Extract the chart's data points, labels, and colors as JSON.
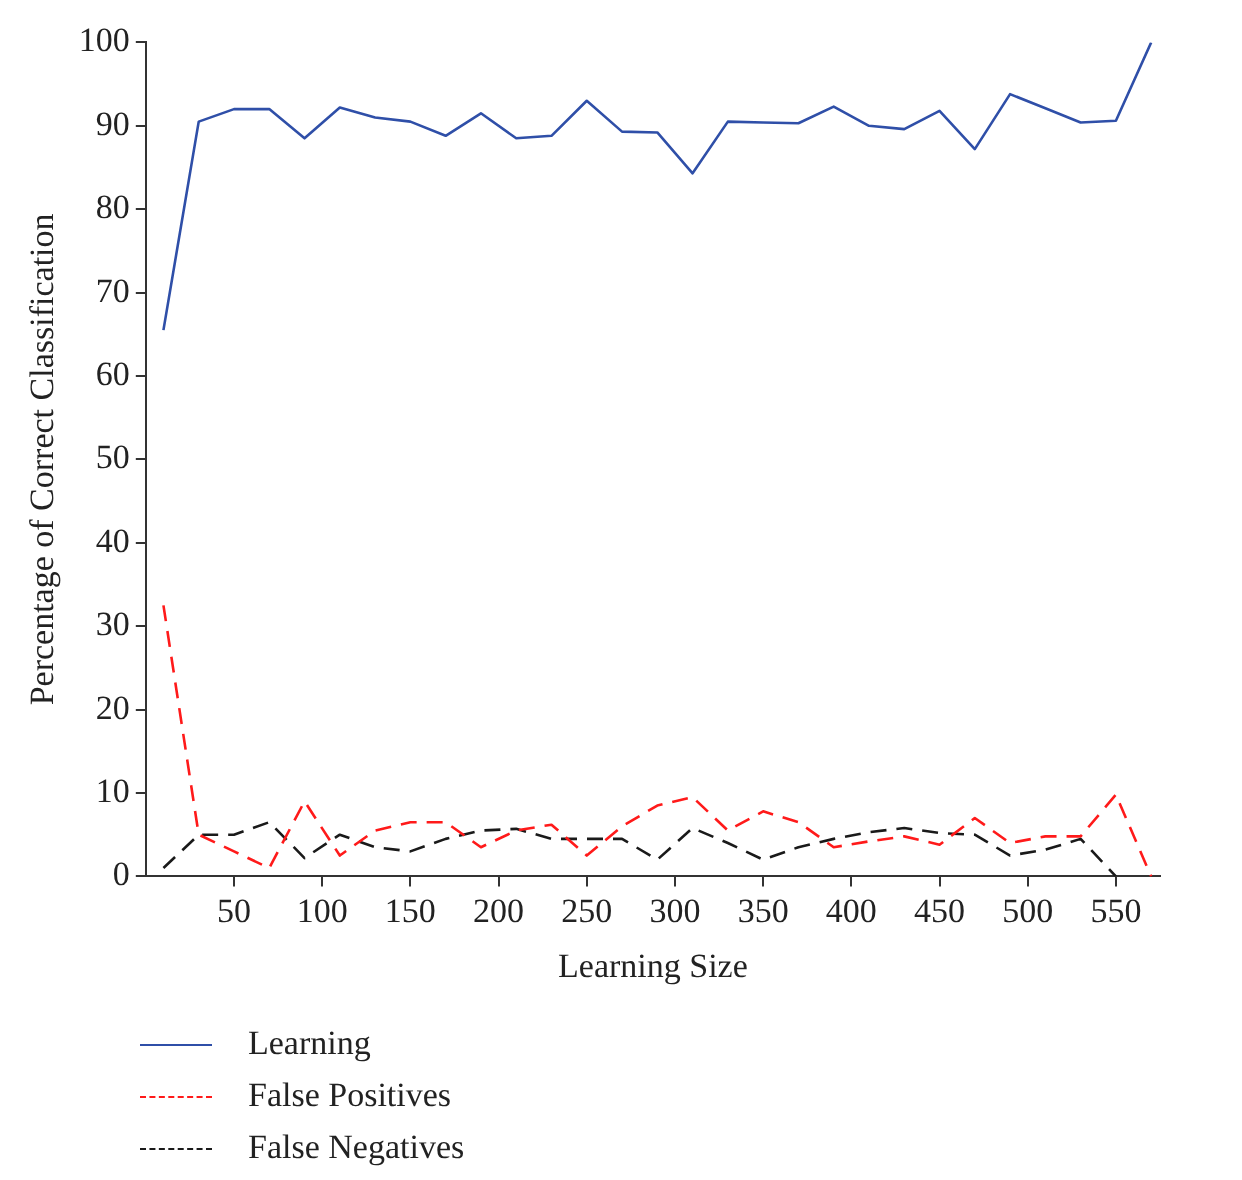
{
  "chart_data": {
    "type": "line",
    "xlabel": "Learning Size",
    "ylabel": "Percentage of Correct Classification",
    "x": [
      10,
      30,
      50,
      70,
      90,
      110,
      130,
      150,
      170,
      190,
      210,
      230,
      250,
      270,
      290,
      310,
      330,
      350,
      370,
      390,
      410,
      430,
      450,
      470,
      490,
      510,
      530,
      550,
      570
    ],
    "series": [
      {
        "name": "Learning",
        "color": "#2f4fa8",
        "line_style": "solid",
        "values": [
          65.5,
          90.5,
          92,
          92,
          88.5,
          92.2,
          91,
          90.5,
          88.8,
          91.5,
          88.5,
          88.8,
          93,
          89.3,
          89.2,
          84.3,
          90.5,
          90.4,
          90.3,
          92.3,
          90,
          89.6,
          91.8,
          87.2,
          93.8,
          92.1,
          90.4,
          90.6,
          100
        ]
      },
      {
        "name": "False Positives",
        "color": "#ff1a1a",
        "line_style": "dashed",
        "values": [
          32.5,
          5,
          3,
          1,
          9,
          2.5,
          5.5,
          6.5,
          6.5,
          3.5,
          5.5,
          6.2,
          2.5,
          6,
          8.5,
          9.5,
          5.5,
          7.8,
          6.5,
          3.5,
          4.2,
          4.8,
          3.8,
          7,
          4,
          4.8,
          4.8,
          9.8,
          0
        ]
      },
      {
        "name": "False Negatives",
        "color": "#1a1a1a",
        "line_style": "dashed",
        "values": [
          1,
          5,
          5,
          6.5,
          2.2,
          5,
          3.5,
          3,
          4.5,
          5.5,
          5.7,
          4.5,
          4.5,
          4.5,
          2,
          5.8,
          4,
          2,
          3.5,
          4.5,
          5.3,
          5.8,
          5.2,
          5,
          2.5,
          3.2,
          4.5,
          0,
          null
        ]
      }
    ],
    "xlim": [
      0,
      575
    ],
    "xticks": [
      50,
      100,
      150,
      200,
      250,
      300,
      350,
      400,
      450,
      500,
      550
    ],
    "ylim": [
      0,
      100
    ],
    "yticks": [
      0,
      10,
      20,
      30,
      40,
      50,
      60,
      70,
      80,
      90,
      100
    ],
    "grid": false,
    "legend": "bottom",
    "marker": "none"
  }
}
